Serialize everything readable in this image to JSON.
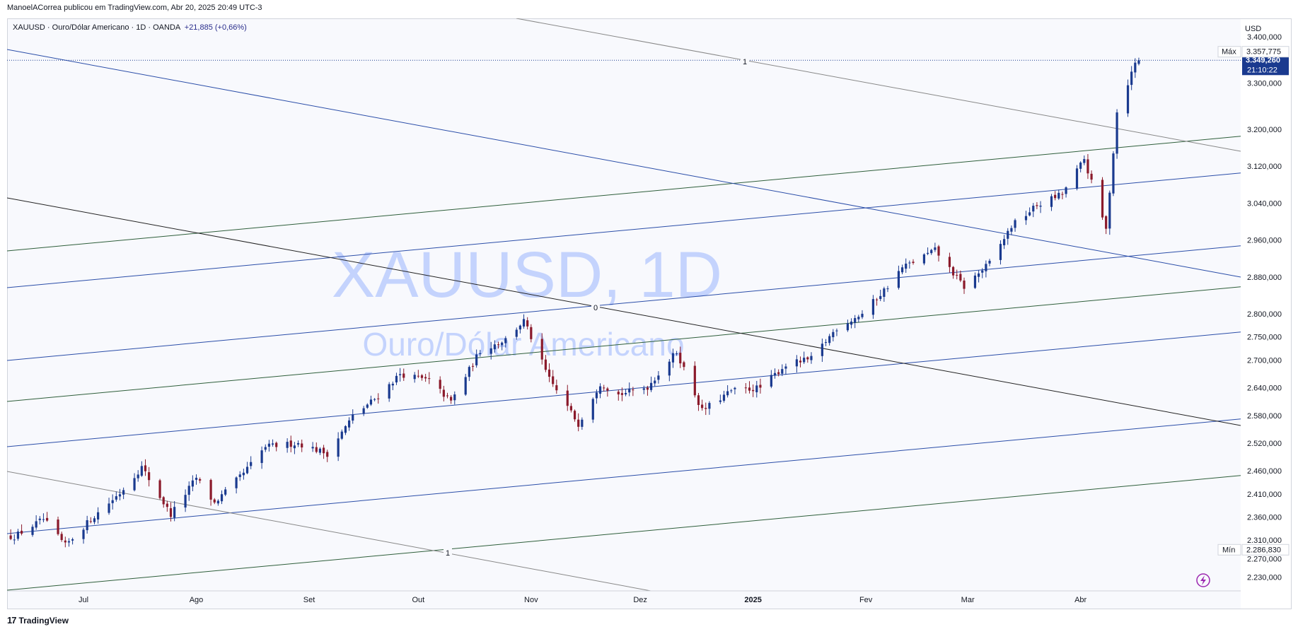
{
  "header": {
    "publish_info": "ManoelACorrea publicou em TradingView.com, Abr 20, 2025 20:49 UTC-3"
  },
  "legend": {
    "symbol": "XAUUSD",
    "name": "Ouro/Dólar Americano",
    "interval": "1D",
    "source": "OANDA",
    "separator": "·",
    "change": "+21,885 (+0,66%)"
  },
  "currency": "USD",
  "watermark": {
    "line1": "XAUUSD, 1D",
    "line2": "Ouro/Dólar Americano"
  },
  "footer": {
    "brand": "TradingView",
    "logo_text": "17"
  },
  "colors": {
    "up": "#1a3a8f",
    "down": "#8b1a2b",
    "channel_blue": "#2a4da8",
    "channel_green": "#2e5e3a",
    "fib_gray": "#888888",
    "fib_black": "#222222",
    "last_price_bg": "#1a3a8f",
    "accent": "#9c27b0"
  },
  "labels": {
    "max_label": "Máx",
    "max_value": "3.357,775",
    "min_label": "Mín",
    "min_value": "2.286,830",
    "last_price": "3.349,260",
    "countdown": "21:10:22",
    "fib_0": "0",
    "fib_1_top": "1",
    "fib_1_bottom": "1"
  },
  "chart_data": {
    "type": "candlestick",
    "symbol": "XAUUSD",
    "interval": "1D",
    "y_ticks": [
      "3.400,000",
      "3.300,000",
      "3.200,000",
      "3.120,000",
      "3.040,000",
      "2.960,000",
      "2.880,000",
      "2.800,000",
      "2.750,000",
      "2.700,000",
      "2.640,000",
      "2.580,000",
      "2.520,000",
      "2.460,000",
      "2.410,000",
      "2.360,000",
      "2.310,000",
      "2.270,000",
      "2.230,000"
    ],
    "x_ticks": [
      "Jul",
      "Ago",
      "Set",
      "Out",
      "Nov",
      "Dez",
      "2025",
      "Fev",
      "Mar",
      "Abr"
    ],
    "x_tick_bold": [
      "2025"
    ],
    "ylim": [
      2200,
      3440
    ],
    "xlim": [
      "2024-06-10",
      "2025-05-15"
    ],
    "last_close": 3349.26,
    "high": 3357.775,
    "low": 2286.83,
    "close_path": [
      [
        "2024-06-12",
        2318
      ],
      [
        "2024-06-20",
        2355
      ],
      [
        "2024-06-26",
        2298
      ],
      [
        "2024-07-03",
        2355
      ],
      [
        "2024-07-11",
        2412
      ],
      [
        "2024-07-17",
        2468
      ],
      [
        "2024-07-25",
        2365
      ],
      [
        "2024-08-01",
        2445
      ],
      [
        "2024-08-06",
        2390
      ],
      [
        "2024-08-14",
        2455
      ],
      [
        "2024-08-20",
        2512
      ],
      [
        "2024-08-29",
        2520
      ],
      [
        "2024-09-06",
        2497
      ],
      [
        "2024-09-13",
        2578
      ],
      [
        "2024-09-20",
        2622
      ],
      [
        "2024-09-26",
        2670
      ],
      [
        "2024-10-04",
        2655
      ],
      [
        "2024-10-10",
        2610
      ],
      [
        "2024-10-18",
        2720
      ],
      [
        "2024-10-25",
        2745
      ],
      [
        "2024-10-30",
        2785
      ],
      [
        "2024-11-06",
        2658
      ],
      [
        "2024-11-14",
        2562
      ],
      [
        "2024-11-20",
        2650
      ],
      [
        "2024-11-25",
        2625
      ],
      [
        "2024-12-03",
        2642
      ],
      [
        "2024-12-11",
        2718
      ],
      [
        "2024-12-18",
        2590
      ],
      [
        "2024-12-26",
        2633
      ],
      [
        "2025-01-03",
        2640
      ],
      [
        "2025-01-10",
        2690
      ],
      [
        "2025-01-17",
        2702
      ],
      [
        "2025-01-24",
        2770
      ],
      [
        "2025-01-31",
        2800
      ],
      [
        "2025-02-07",
        2860
      ],
      [
        "2025-02-11",
        2900
      ],
      [
        "2025-02-20",
        2938
      ],
      [
        "2025-02-28",
        2858
      ],
      [
        "2025-03-07",
        2910
      ],
      [
        "2025-03-13",
        2990
      ],
      [
        "2025-03-20",
        3035
      ],
      [
        "2025-03-27",
        3060
      ],
      [
        "2025-04-02",
        3135
      ],
      [
        "2025-04-08",
        2982
      ],
      [
        "2025-04-11",
        3237
      ],
      [
        "2025-04-16",
        3343
      ],
      [
        "2025-04-17",
        3349.26
      ]
    ]
  }
}
